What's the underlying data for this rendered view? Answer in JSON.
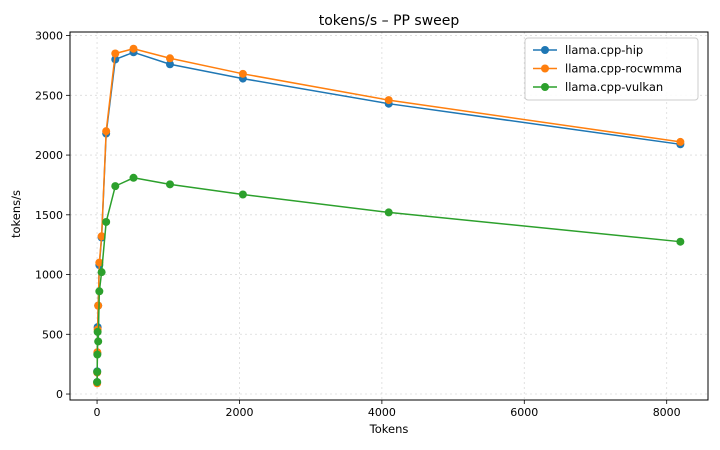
{
  "chart_data": {
    "type": "line",
    "title": "tokens/s – PP sweep",
    "xlabel": "Tokens",
    "ylabel": "tokens/s",
    "xlim": [
      -380,
      8580
    ],
    "ylim": [
      -50,
      3030
    ],
    "xticks": [
      0,
      2000,
      4000,
      6000,
      8000
    ],
    "yticks": [
      0,
      500,
      1000,
      1500,
      2000,
      2500,
      3000
    ],
    "grid": true,
    "legend_position": "top-right",
    "series": [
      {
        "name": "llama.cpp-hip",
        "color": "#1f77b4",
        "x": [
          1,
          2,
          4,
          8,
          16,
          32,
          64,
          128,
          256,
          512,
          1024,
          2048,
          4096,
          8192
        ],
        "y": [
          100,
          190,
          340,
          560,
          740,
          1080,
          1310,
          2180,
          2800,
          2860,
          2760,
          2640,
          2430,
          2090
        ]
      },
      {
        "name": "llama.cpp-rocwmma",
        "color": "#ff7f0e",
        "x": [
          1,
          2,
          4,
          8,
          16,
          32,
          64,
          128,
          256,
          512,
          1024,
          2048,
          4096,
          8192
        ],
        "y": [
          90,
          180,
          350,
          540,
          740,
          1100,
          1320,
          2200,
          2850,
          2890,
          2810,
          2680,
          2460,
          2110
        ]
      },
      {
        "name": "llama.cpp-vulkan",
        "color": "#2ca02c",
        "x": [
          1,
          2,
          4,
          8,
          16,
          32,
          64,
          128,
          256,
          512,
          1024,
          2048,
          4096,
          8192
        ],
        "y": [
          100,
          185,
          330,
          520,
          440,
          860,
          1020,
          1440,
          1740,
          1810,
          1755,
          1670,
          1520,
          1275
        ]
      }
    ]
  }
}
